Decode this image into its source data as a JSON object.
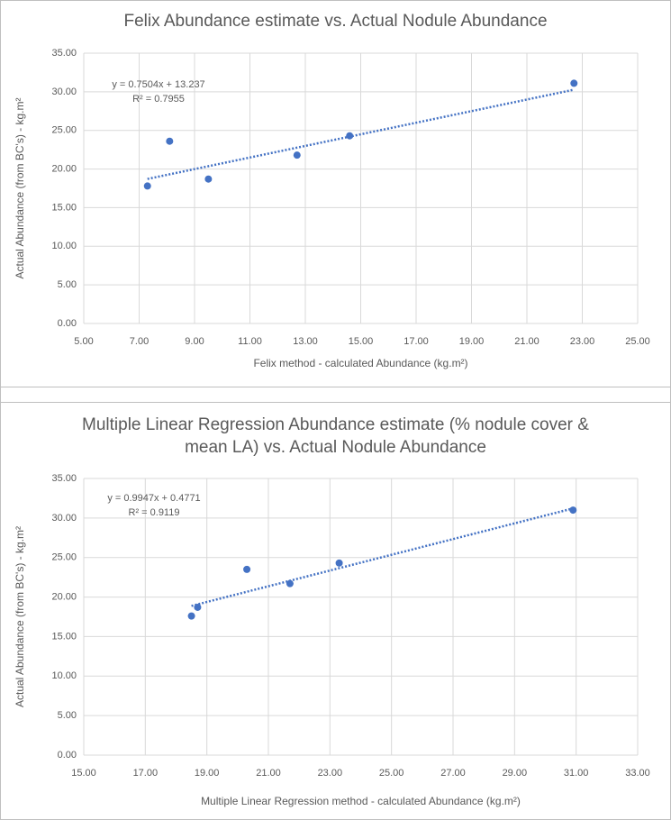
{
  "chart_data": [
    {
      "type": "scatter",
      "title": "Felix Abundance estimate vs. Actual Nodule Abundance",
      "x_label": "Felix method - calculated Abundance (kg.m²)",
      "y_label": "Actual Abundance (from BC's) - kg.m²",
      "color": "#4472c4",
      "grid": true,
      "x": [
        7.3,
        8.1,
        9.5,
        12.7,
        14.6,
        22.7
      ],
      "values": [
        17.8,
        23.6,
        18.7,
        21.8,
        24.3,
        31.1
      ],
      "trendline": {
        "slope": 0.7504,
        "intercept": 13.237,
        "label": "y = 0.7504x + 13.237",
        "r_squared": 0.7955,
        "r_squared_label": "R² = 0.7955"
      },
      "xlim": [
        5,
        25
      ],
      "xticks": [
        {
          "value": 5,
          "label": "5.00"
        },
        {
          "value": 7,
          "label": "7.00"
        },
        {
          "value": 9,
          "label": "9.00"
        },
        {
          "value": 11,
          "label": "11.00"
        },
        {
          "value": 13,
          "label": "13.00"
        },
        {
          "value": 15,
          "label": "15.00"
        },
        {
          "value": 17,
          "label": "17.00"
        },
        {
          "value": 19,
          "label": "19.00"
        },
        {
          "value": 21,
          "label": "21.00"
        },
        {
          "value": 23,
          "label": "23.00"
        },
        {
          "value": 25,
          "label": "25.00"
        }
      ],
      "ylim": [
        0,
        35
      ],
      "yticks": [
        {
          "value": 0,
          "label": "0.00"
        },
        {
          "value": 5,
          "label": "5.00"
        },
        {
          "value": 10,
          "label": "10.00"
        },
        {
          "value": 15,
          "label": "15.00"
        },
        {
          "value": 20,
          "label": "20.00"
        },
        {
          "value": 25,
          "label": "25.00"
        },
        {
          "value": 30,
          "label": "30.00"
        },
        {
          "value": 35,
          "label": "35.00"
        }
      ]
    },
    {
      "type": "scatter",
      "title": "Multiple Linear Regression Abundance estimate (% nodule cover & mean LA) vs. Actual Nodule Abundance",
      "x_label": "Multiple Linear Regression  method - calculated Abundance (kg.m²)",
      "y_label": "Actual Abundance (from BC's) - kg.m²",
      "color": "#4472c4",
      "grid": true,
      "x": [
        18.5,
        18.7,
        20.3,
        21.7,
        23.3,
        30.9
      ],
      "values": [
        17.6,
        18.7,
        23.5,
        21.7,
        24.3,
        31.0
      ],
      "trendline": {
        "slope": 0.9947,
        "intercept": 0.4771,
        "label": "y = 0.9947x + 0.4771",
        "r_squared": 0.9119,
        "r_squared_label": "R² = 0.9119"
      },
      "xlim": [
        15,
        33
      ],
      "xticks": [
        {
          "value": 15,
          "label": "15.00"
        },
        {
          "value": 17,
          "label": "17.00"
        },
        {
          "value": 19,
          "label": "19.00"
        },
        {
          "value": 21,
          "label": "21.00"
        },
        {
          "value": 23,
          "label": "23.00"
        },
        {
          "value": 25,
          "label": "25.00"
        },
        {
          "value": 27,
          "label": "27.00"
        },
        {
          "value": 29,
          "label": "29.00"
        },
        {
          "value": 31,
          "label": "31.00"
        },
        {
          "value": 33,
          "label": "33.00"
        }
      ],
      "ylim": [
        0,
        35
      ],
      "yticks": [
        {
          "value": 0,
          "label": "0.00"
        },
        {
          "value": 5,
          "label": "5.00"
        },
        {
          "value": 10,
          "label": "10.00"
        },
        {
          "value": 15,
          "label": "15.00"
        },
        {
          "value": 20,
          "label": "20.00"
        },
        {
          "value": 25,
          "label": "25.00"
        },
        {
          "value": 30,
          "label": "30.00"
        },
        {
          "value": 35,
          "label": "35.00"
        }
      ]
    }
  ]
}
